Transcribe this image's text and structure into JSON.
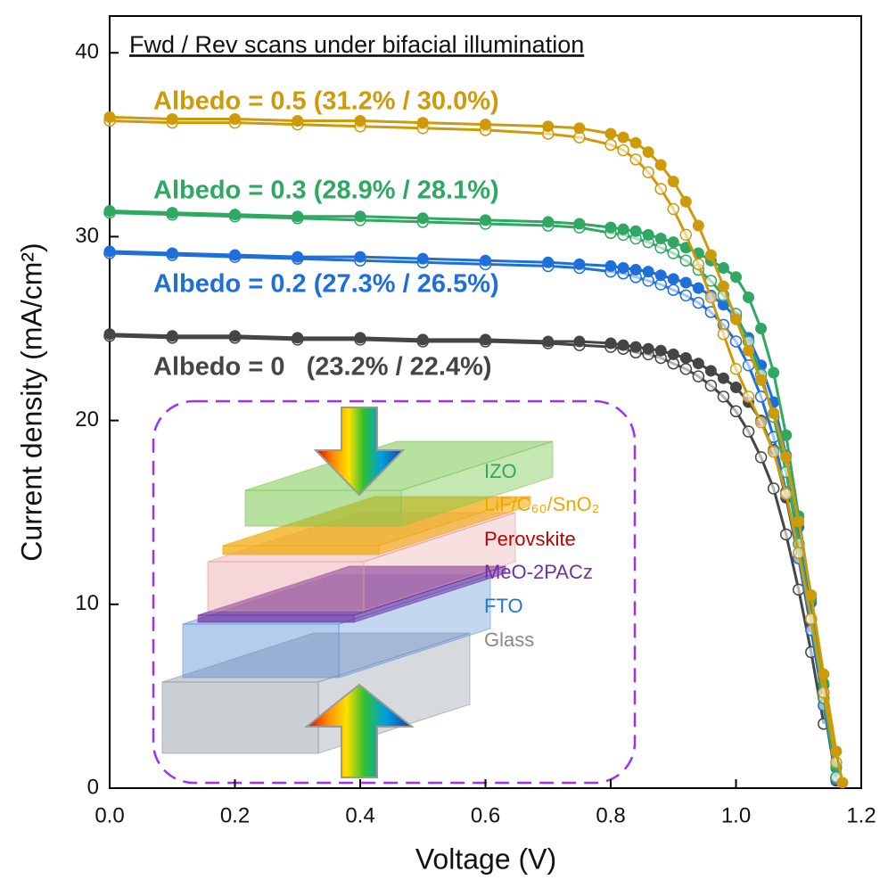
{
  "chart_data": {
    "type": "line",
    "title": "Fwd / Rev scans under bifacial illumination",
    "x_label": "Voltage (V)",
    "y_label": "Current density (mA/cm²)",
    "xlim": [
      0,
      1.2
    ],
    "ylim": [
      0,
      42
    ],
    "xticks": [
      {
        "value": 0,
        "label": "0.0"
      },
      0.2,
      0.4,
      0.6,
      0.8,
      {
        "value": 1,
        "label": "1.0"
      },
      1.2
    ],
    "yticks": [
      0,
      10,
      20,
      30,
      40
    ],
    "x": [
      0,
      0.1,
      0.2,
      0.3,
      0.4,
      0.5,
      0.6,
      0.7,
      0.75,
      0.8,
      0.82,
      0.84,
      0.86,
      0.88,
      0.9,
      0.92,
      0.94,
      0.96,
      0.98,
      1.0,
      1.02,
      1.04,
      1.06,
      1.08,
      1.1,
      1.12,
      1.14,
      1.16,
      1.17
    ],
    "series": [
      {
        "name": "Albedo = 0   (23.2% / 22.4%)",
        "color": "#454545",
        "values": [
          24.7,
          24.6,
          24.6,
          24.5,
          24.5,
          24.4,
          24.4,
          24.3,
          24.3,
          24.2,
          24.1,
          24.0,
          23.9,
          23.8,
          23.6,
          23.4,
          23.1,
          22.7,
          22.3,
          21.8,
          21.0,
          20.0,
          18.4,
          15.8,
          12.5,
          8.8,
          4.5,
          0.4,
          null
        ],
        "reverse_values": [
          24.6,
          24.5,
          24.5,
          24.4,
          24.4,
          24.3,
          24.3,
          24.2,
          24.1,
          24.0,
          23.9,
          23.7,
          23.6,
          23.4,
          23.1,
          22.8,
          22.4,
          21.9,
          21.3,
          20.5,
          19.4,
          18.0,
          16.3,
          13.8,
          10.8,
          7.4,
          3.5,
          null,
          null
        ]
      },
      {
        "name": "Albedo = 0.2 (27.3% / 26.5%)",
        "color": "#1f6fdb",
        "values": [
          29.2,
          29.1,
          29.0,
          28.9,
          28.9,
          28.8,
          28.7,
          28.6,
          28.5,
          28.4,
          28.3,
          28.2,
          28.1,
          27.9,
          27.7,
          27.5,
          27.2,
          26.8,
          26.3,
          25.6,
          24.5,
          23.0,
          21.0,
          18.1,
          14.2,
          10.1,
          5.6,
          1.1,
          null
        ],
        "reverse_values": [
          29.1,
          29.0,
          28.9,
          28.8,
          28.7,
          28.6,
          28.5,
          28.4,
          28.3,
          28.1,
          28.0,
          27.8,
          27.6,
          27.4,
          27.1,
          26.8,
          26.4,
          25.9,
          25.2,
          24.3,
          23.0,
          21.3,
          19.1,
          16.1,
          12.5,
          8.6,
          4.5,
          0.5,
          null
        ]
      },
      {
        "name": "Albedo = 0.3 (28.9% / 28.1%)",
        "color": "#2ea862",
        "values": [
          31.4,
          31.3,
          31.2,
          31.1,
          31.1,
          31.0,
          30.9,
          30.8,
          30.7,
          30.5,
          30.4,
          30.3,
          30.1,
          29.9,
          29.7,
          29.4,
          29.1,
          28.7,
          28.3,
          27.8,
          26.7,
          25.0,
          22.6,
          19.2,
          14.8,
          10.3,
          5.7,
          1.2,
          null
        ],
        "reverse_values": [
          31.3,
          31.2,
          31.1,
          31.0,
          30.9,
          30.8,
          30.7,
          30.6,
          30.5,
          30.2,
          30.1,
          29.9,
          29.7,
          29.4,
          29.1,
          28.7,
          28.2,
          27.6,
          26.8,
          25.8,
          24.3,
          22.5,
          20.2,
          17.2,
          13.3,
          9.2,
          4.9,
          0.6,
          null
        ]
      },
      {
        "name": "Albedo = 0.5 (31.2% / 30.0%)",
        "color": "#cf9a0a",
        "values": [
          36.5,
          36.4,
          36.4,
          36.3,
          36.3,
          36.2,
          36.1,
          36.0,
          35.9,
          35.6,
          35.4,
          35.1,
          34.6,
          33.9,
          33.0,
          31.9,
          30.6,
          29.0,
          27.3,
          25.5,
          23.8,
          22.2,
          20.4,
          18.0,
          14.5,
          10.5,
          6.2,
          2.0,
          0.3
        ],
        "reverse_values": [
          36.3,
          36.2,
          36.2,
          36.1,
          36.0,
          35.9,
          35.8,
          35.6,
          35.4,
          35.0,
          34.7,
          34.2,
          33.5,
          32.6,
          31.5,
          30.1,
          28.5,
          26.7,
          24.7,
          22.8,
          21.3,
          19.9,
          18.3,
          16.0,
          12.8,
          9.2,
          5.2,
          1.4,
          null
        ]
      }
    ],
    "inset": {
      "layers": [
        {
          "label": "IZO",
          "color": "#2ea862"
        },
        {
          "label": "LiF/C₆₀/SnO₂",
          "color": "#f0a800"
        },
        {
          "label": "Perovskite",
          "color": "#c00000"
        },
        {
          "label": "MeO-2PACz",
          "color": "#7030a0"
        },
        {
          "label": "FTO",
          "color": "#1f77d4"
        },
        {
          "label": "Glass",
          "color": "#8a8a8a"
        }
      ]
    }
  }
}
